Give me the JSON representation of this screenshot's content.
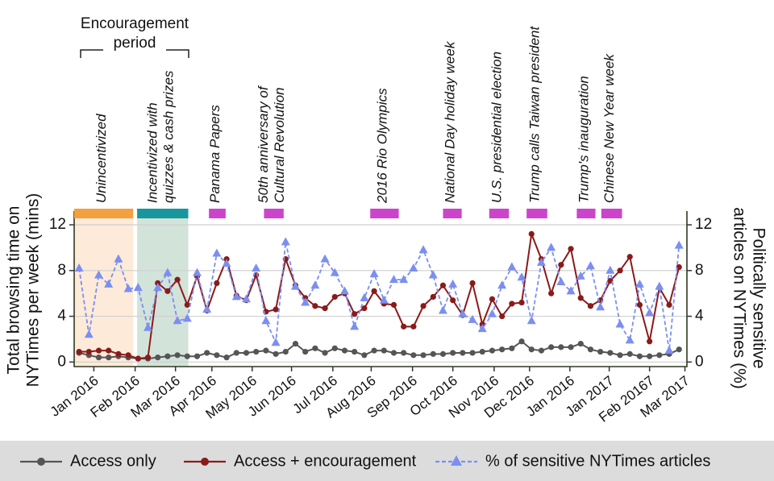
{
  "chart_data": {
    "type": "line",
    "annotation": [
      "Encouragement",
      "period"
    ],
    "y_label": [
      "Total browsing time on",
      "NYTimes per week (mins)"
    ],
    "y2_label": [
      "Politically sensitive",
      "articles on NYTimes (%)"
    ],
    "xlim": [
      -0.5,
      61.8
    ],
    "xticks": [
      {
        "value": 1.5,
        "label": "Jan 2016"
      },
      {
        "value": 5.7,
        "label": "Feb 2016"
      },
      {
        "value": 9.8,
        "label": "Mar 2016"
      },
      {
        "value": 13.5,
        "label": "Apr 2016"
      },
      {
        "value": 17.6,
        "label": "May 2016"
      },
      {
        "value": 21.6,
        "label": "Jun 2016"
      },
      {
        "value": 25.8,
        "label": "Jul 2016"
      },
      {
        "value": 29.7,
        "label": "Aug 2016"
      },
      {
        "value": 33.9,
        "label": "Sep 2016"
      },
      {
        "value": 38,
        "label": "Oct 2016"
      },
      {
        "value": 42.2,
        "label": "Nov 2016"
      },
      {
        "value": 45.8,
        "label": "Dec 2016"
      },
      {
        "value": 49.9,
        "label": "Jan 2016"
      },
      {
        "value": 53.9,
        "label": "Jan 2017"
      },
      {
        "value": 58,
        "label": "Feb 20167"
      },
      {
        "value": 61.6,
        "label": "Mar 2017"
      }
    ],
    "ylim": [
      -0.4,
      13.2
    ],
    "yticks": [
      0,
      4,
      8,
      12
    ],
    "y2lim": [
      -0.4,
      13.2
    ],
    "y2ticks": [
      0,
      4,
      8,
      12
    ],
    "grid": true,
    "legend": "bottom",
    "events": [
      {
        "label": [
          "Unincentivized"
        ],
        "start": -0.5,
        "end": 5.5,
        "color": "#f5a040",
        "shade": "#fde8d4"
      },
      {
        "label": [
          "Incentivized with",
          "quizzes & cash prizes"
        ],
        "start": 5.9,
        "end": 11.1,
        "color": "#17979c",
        "shade": "#cde0d6"
      },
      {
        "label": [
          "Panama Papers"
        ],
        "start": 13.2,
        "end": 14.9,
        "color": "#cc44cc"
      },
      {
        "label": [
          "50th anniversary of",
          "Cultural Revolution"
        ],
        "start": 18.8,
        "end": 20.8,
        "color": "#cc44cc"
      },
      {
        "label": [
          "2016 Rio Olympics"
        ],
        "start": 29.6,
        "end": 32.5,
        "color": "#cc44cc"
      },
      {
        "label": [
          "National Day holiday week"
        ],
        "start": 37,
        "end": 38.9,
        "color": "#cc44cc"
      },
      {
        "label": [
          "U.S. presidential election"
        ],
        "start": 41.7,
        "end": 43.7,
        "color": "#cc44cc"
      },
      {
        "label": [
          "Trump calls Taiwan president"
        ],
        "start": 45.5,
        "end": 47.6,
        "color": "#cc44cc"
      },
      {
        "label": [
          "Trump's inauguration"
        ],
        "start": 50.6,
        "end": 52.5,
        "color": "#cc44cc"
      },
      {
        "label": [
          "Chinese New Year week"
        ],
        "start": 53.1,
        "end": 55.2,
        "color": "#cc44cc"
      }
    ],
    "x": [
      0,
      1,
      2,
      3,
      4,
      5,
      6,
      7,
      8,
      9,
      10,
      11,
      12,
      13,
      14,
      15,
      16,
      17,
      18,
      19,
      20,
      21,
      22,
      23,
      24,
      25,
      26,
      27,
      28,
      29,
      30,
      31,
      32,
      33,
      34,
      35,
      36,
      37,
      38,
      39,
      40,
      41,
      42,
      43,
      44,
      45,
      46,
      47,
      48,
      49,
      50,
      51,
      52,
      53,
      54,
      55,
      56,
      57,
      58,
      59,
      60,
      61
    ],
    "series": [
      {
        "name": "Access only",
        "color": "#555555",
        "marker": "circle",
        "dash": false,
        "values": [
          0.8,
          0.6,
          0.4,
          0.4,
          0.5,
          0.4,
          0.3,
          0.3,
          0.4,
          0.5,
          0.6,
          0.5,
          0.5,
          0.8,
          0.6,
          0.4,
          0.8,
          0.8,
          0.9,
          1.0,
          0.7,
          0.9,
          1.6,
          0.9,
          1.2,
          0.8,
          1.2,
          1.0,
          0.9,
          0.6,
          1.0,
          1.0,
          0.8,
          0.8,
          0.6,
          0.6,
          0.7,
          0.7,
          0.8,
          0.8,
          0.8,
          0.9,
          1.0,
          1.1,
          1.2,
          1.8,
          1.1,
          1.0,
          1.3,
          1.3,
          1.3,
          1.6,
          1.1,
          0.9,
          0.8,
          0.6,
          0.7,
          0.5,
          0.5,
          0.6,
          0.7,
          1.1
        ]
      },
      {
        "name": "Access + encouragement",
        "color": "#8b1a1a",
        "marker": "circle",
        "dash": false,
        "values": [
          0.9,
          0.9,
          1.0,
          1.0,
          0.7,
          0.6,
          0.3,
          0.4,
          6.9,
          6.2,
          7.2,
          5.0,
          7.5,
          4.5,
          6.9,
          9.0,
          5.8,
          5.4,
          7.6,
          4.4,
          4.6,
          9.0,
          6.7,
          5.6,
          4.9,
          4.7,
          5.7,
          6.0,
          4.2,
          4.7,
          6.2,
          5.1,
          5.0,
          3.1,
          3.1,
          4.9,
          5.7,
          6.7,
          5.4,
          4.1,
          6.9,
          3.3,
          5.5,
          4.0,
          5.1,
          5.2,
          11.2,
          9.0,
          6.0,
          8.5,
          9.9,
          5.6,
          4.9,
          5.4,
          7.1,
          8.0,
          9.2,
          5.0,
          1.8,
          6.5,
          5.0,
          8.3
        ]
      },
      {
        "name": "% of sensitive NYTimes articles",
        "color": "#7b8ff0",
        "marker": "triangle",
        "dash": true,
        "axis": "y2",
        "values": [
          8.2,
          2.4,
          7.6,
          6.8,
          9.0,
          6.4,
          6.5,
          3.0,
          6.5,
          7.8,
          3.6,
          3.8,
          7.8,
          4.6,
          9.5,
          8.6,
          5.7,
          5.5,
          8.2,
          3.6,
          1.7,
          10.5,
          6.6,
          5.2,
          6.7,
          9.0,
          7.8,
          6.2,
          3.1,
          5.6,
          7.7,
          5.4,
          7.2,
          7.2,
          8.2,
          9.8,
          7.6,
          4.5,
          6.8,
          4.2,
          3.7,
          2.9,
          4.2,
          6.7,
          8.3,
          7.4,
          3.6,
          8.7,
          10.0,
          7.0,
          6.2,
          7.5,
          8.4,
          4.8,
          8.0,
          3.3,
          1.9,
          6.8,
          4.3,
          6.6,
          1.0,
          10.2
        ]
      }
    ]
  }
}
